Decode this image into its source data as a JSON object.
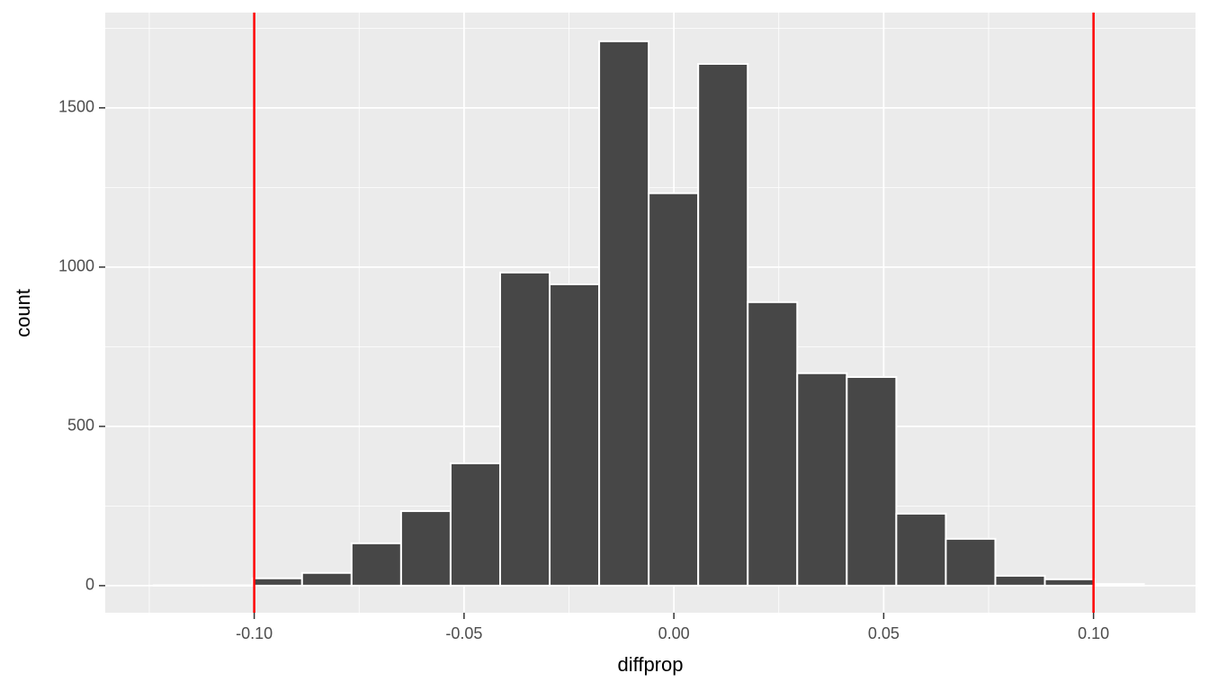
{
  "chart_data": {
    "type": "histogram",
    "x_label": "diffprop",
    "y_label": "count",
    "bins": [
      -0.124,
      -0.1122,
      -0.1004,
      -0.0886,
      -0.0768,
      -0.065,
      -0.0532,
      -0.0414,
      -0.0296,
      -0.0178,
      -0.006,
      0.0058,
      0.0176,
      0.0294,
      0.0412,
      0.053,
      0.0648,
      0.0766,
      0.0884,
      0.1002,
      0.112
    ],
    "values": [
      1,
      1,
      23,
      40,
      133,
      234,
      384,
      983,
      946,
      1709,
      1232,
      1638,
      890,
      667,
      655,
      226,
      147,
      31,
      20,
      5
    ],
    "color": "#474747",
    "xlim": [
      -0.1355,
      0.1243
    ],
    "ylim": [
      -85,
      1799
    ],
    "xticks": [
      {
        "value": -0.1,
        "label": "-0.10"
      },
      {
        "value": -0.05,
        "label": "-0.05"
      },
      {
        "value": 0,
        "label": "0.00"
      },
      {
        "value": 0.05,
        "label": "0.05"
      },
      {
        "value": 0.1,
        "label": "0.10"
      }
    ],
    "yticks": [
      0,
      500,
      1000,
      1500
    ],
    "minor_xticks": [
      -0.125,
      -0.075,
      -0.025,
      0.025,
      0.075
    ],
    "minor_yticks": [
      250,
      750,
      1250,
      1750
    ],
    "vlines": [
      -0.1,
      0.1
    ],
    "vline_color": "#ff0000",
    "grid": true
  }
}
